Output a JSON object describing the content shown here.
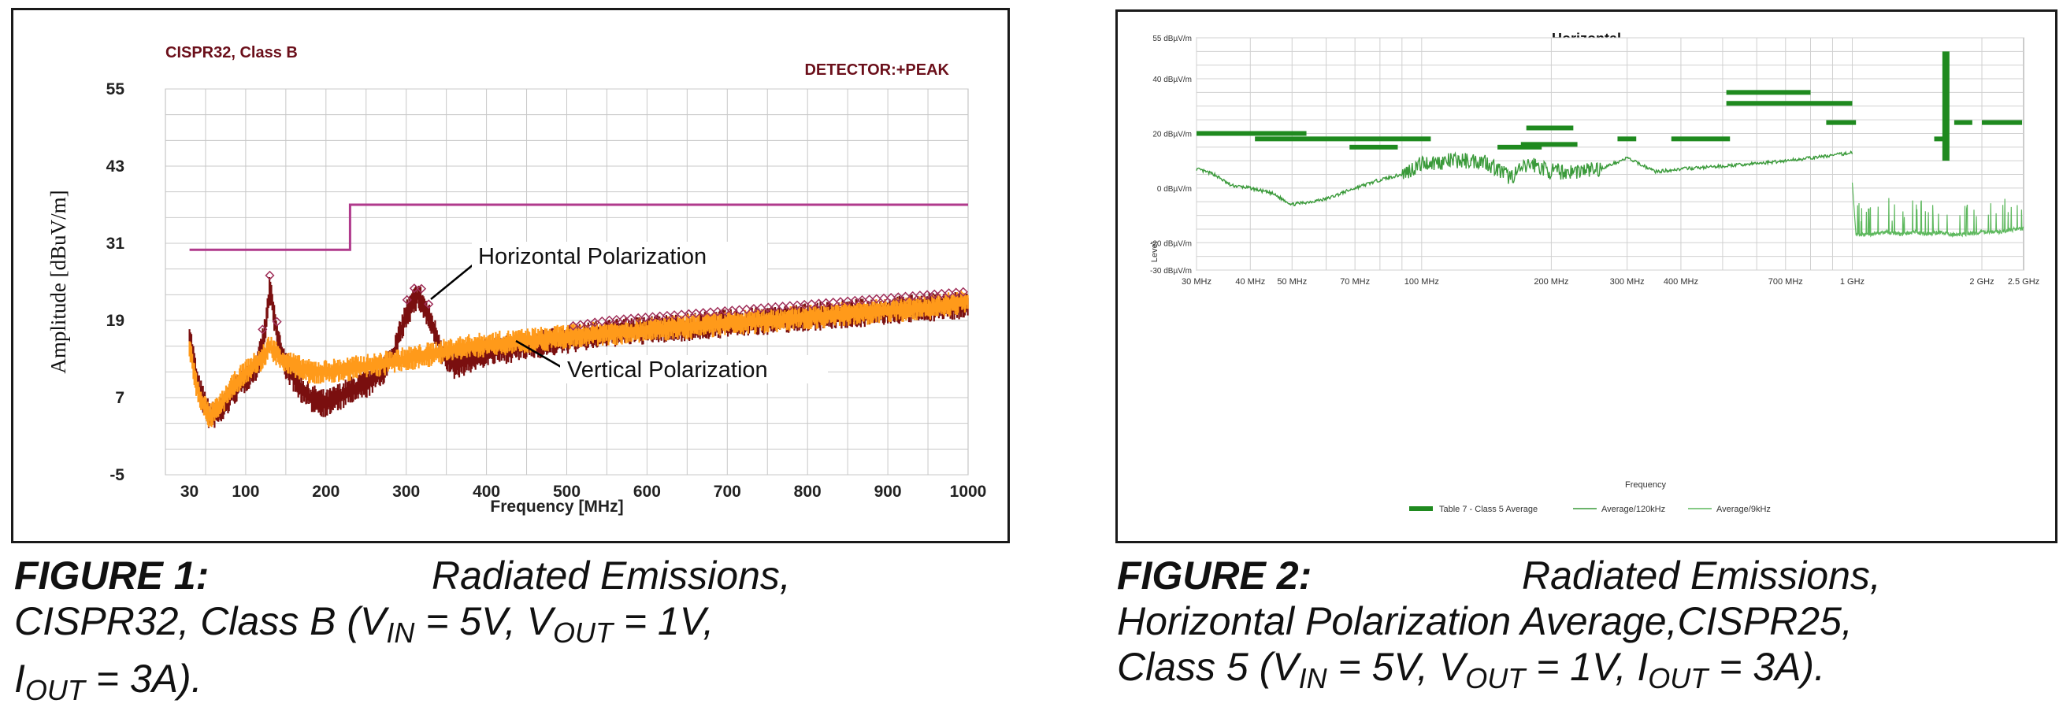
{
  "figure1": {
    "title": "CISPR32, Class B",
    "detector": "DETECTOR:+PEAK",
    "xlabel": "Frequency [MHz]",
    "ylabel": "Amplitude [dBuV/m]",
    "annotations": [
      "Horizontal Polarization",
      "Vertical Polarization"
    ],
    "colors": {
      "limit": "#b03a8c",
      "horizontal": "#7a0f0f",
      "vertical": "#ff9a1a",
      "grid": "#c8c8c8",
      "title": "#6b0f1a"
    }
  },
  "figure2": {
    "title": "Horizontal",
    "xlabel": "Frequency",
    "ylabel": "Level",
    "legend": [
      "Table 7 - Class 5 Average",
      "Average/120kHz",
      "Average/9kHz"
    ],
    "colors": {
      "limit": "#1f8a1f",
      "trace": "#3a9a3a",
      "grid": "#d0d0d0"
    }
  },
  "captions": {
    "c1_label": "FIGURE 1:",
    "c1_text1": "Radiated Emissions,",
    "c1_line2a": "CISPR32, Class B (V",
    "c1_sub1": "IN",
    "c1_line2b": " = 5V, V",
    "c1_sub2": "OUT",
    "c1_line2c": " = 1V,",
    "c1_line3a": "I",
    "c1_sub3": "OUT",
    "c1_line3b": " = 3A).",
    "c2_label": "FIGURE 2:",
    "c2_text1": "Radiated Emissions,",
    "c2_line2": "Horizontal Polarization Average,CISPR25,",
    "c2_line3a": "Class 5 (V",
    "c2_sub1": "IN",
    "c2_line3b": " = 5V, V",
    "c2_sub2": "OUT",
    "c2_line3c": " = 1V, I",
    "c2_sub3": "OUT",
    "c2_line3d": " = 3A)."
  },
  "chart_data": [
    {
      "type": "line",
      "title": "CISPR32, Class B",
      "xlabel": "Frequency [MHz]",
      "ylabel": "Amplitude [dBuV/m]",
      "xlim": [
        0,
        1000
      ],
      "ylim": [
        -5,
        55
      ],
      "xticks": [
        30,
        100,
        200,
        300,
        400,
        500,
        600,
        700,
        800,
        900,
        1000
      ],
      "yticks": [
        -5,
        7,
        19,
        31,
        43,
        55
      ],
      "limit": {
        "x": [
          30,
          230,
          230,
          1000
        ],
        "y": [
          30,
          30,
          37,
          37
        ]
      },
      "series": [
        {
          "name": "Horizontal Polarization",
          "x": [
            30,
            40,
            55,
            70,
            85,
            100,
            115,
            125,
            130,
            140,
            150,
            165,
            180,
            200,
            215,
            230,
            250,
            270,
            285,
            300,
            315,
            330,
            345,
            360,
            380,
            400,
            450,
            500,
            550,
            600,
            650,
            700,
            750,
            800,
            850,
            900,
            950,
            1000
          ],
          "y": [
            17,
            9,
            4,
            5,
            8,
            10,
            12,
            18,
            24,
            16,
            12,
            9,
            7,
            6,
            7,
            8,
            9,
            11,
            14,
            20,
            23,
            19,
            14,
            12,
            13,
            14,
            15,
            16,
            17,
            17.5,
            18,
            18.5,
            19,
            19.5,
            20,
            20.5,
            21,
            21.5
          ]
        },
        {
          "name": "Vertical Polarization",
          "x": [
            30,
            40,
            55,
            70,
            85,
            100,
            120,
            130,
            145,
            160,
            180,
            200,
            230,
            260,
            300,
            340,
            380,
            420,
            460,
            500,
            550,
            600,
            650,
            700,
            750,
            800,
            850,
            900,
            950,
            1000
          ],
          "y": [
            15,
            8,
            4,
            6,
            9,
            11,
            13,
            15,
            13,
            12,
            11,
            11,
            11.5,
            12,
            13,
            14,
            15,
            15.5,
            16,
            16.5,
            17,
            17.5,
            18,
            18.5,
            19,
            19.5,
            20,
            20.5,
            21,
            22
          ]
        }
      ]
    },
    {
      "type": "line",
      "title": "Horizontal",
      "xlabel": "Frequency",
      "ylabel": "Level",
      "xscale": "log",
      "xlim": [
        30,
        2500
      ],
      "ylim": [
        -30,
        55
      ],
      "xticks": [
        "30 MHz",
        "40 MHz",
        "50 MHz",
        "70 MHz",
        "100 MHz",
        "200 MHz",
        "300 MHz",
        "400 MHz",
        "700 MHz",
        "1 GHz",
        "2 GHz",
        "2.5 GHz"
      ],
      "xtick_values": [
        30,
        40,
        50,
        70,
        100,
        200,
        300,
        400,
        700,
        1000,
        2000,
        2500
      ],
      "yticks": [
        "55 dBµV/m",
        "40 dBµV/m",
        "20 dBµV/m",
        "0 dBµV/m",
        "-20 dBµV/m",
        "-30 dBµV/m"
      ],
      "ytick_values": [
        55,
        40,
        20,
        0,
        -20,
        -30
      ],
      "limit_segments": [
        {
          "x": [
            30,
            54
          ],
          "y": 20
        },
        {
          "x": [
            41,
            105
          ],
          "y": 18
        },
        {
          "x": [
            68,
            88
          ],
          "y": 15
        },
        {
          "x": [
            150,
            190
          ],
          "y": 15
        },
        {
          "x": [
            170,
            230
          ],
          "y": 16
        },
        {
          "x": [
            175,
            225
          ],
          "y": 22
        },
        {
          "x": [
            285,
            315
          ],
          "y": 18
        },
        {
          "x": [
            380,
            520
          ],
          "y": 18
        },
        {
          "x": [
            510,
            800
          ],
          "y": 35
        },
        {
          "x": [
            510,
            1000
          ],
          "y": 31
        },
        {
          "x": [
            870,
            1020
          ],
          "y": 24
        },
        {
          "x": [
            1550,
            1620
          ],
          "y": 18
        },
        {
          "x": [
            1725,
            1900
          ],
          "y": 24
        },
        {
          "x": [
            2000,
            2480
          ],
          "y": 24
        }
      ],
      "limit_bar": {
        "x": 1650,
        "y": [
          10,
          50
        ]
      },
      "series": [
        {
          "name": "Average/120kHz",
          "x": [
            30,
            33,
            36,
            40,
            45,
            50,
            55,
            60,
            70,
            80,
            90,
            100,
            120,
            140,
            160,
            180,
            200,
            220,
            260,
            300,
            350,
            400,
            500,
            600,
            700,
            800,
            900,
            1000
          ],
          "y": [
            7,
            5,
            1,
            0,
            -2,
            -6,
            -5,
            -4,
            0,
            3,
            5,
            9,
            10,
            10,
            4,
            9,
            6,
            6,
            7,
            11,
            6,
            7,
            8,
            9,
            10,
            11,
            12,
            13
          ]
        },
        {
          "name": "Average/9kHz",
          "x": [
            1000,
            1020,
            1100,
            1200,
            1300,
            1400,
            1500,
            1600,
            1700,
            1800,
            2000,
            2200,
            2400,
            2500
          ],
          "y": [
            2,
            -17,
            -17,
            -16,
            -17,
            -16,
            -17,
            -16,
            -17,
            -17,
            -16,
            -16,
            -15,
            -15
          ]
        }
      ]
    }
  ]
}
